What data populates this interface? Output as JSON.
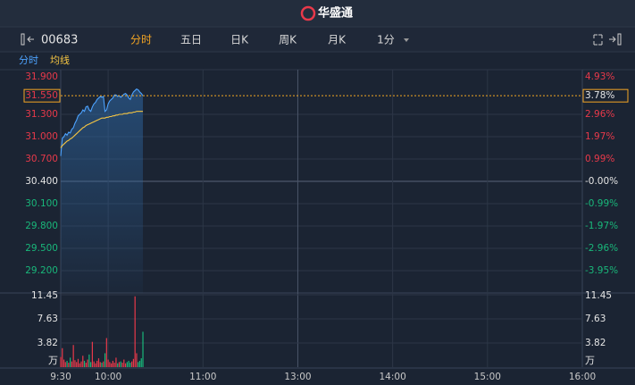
{
  "header": {
    "logo": "华盛通",
    "code": "00683",
    "tabs": [
      "分时",
      "五日",
      "日K",
      "周K",
      "月K",
      "1分"
    ],
    "active_tab": 0
  },
  "chart_data": {
    "type": "line",
    "x": [
      0,
      1,
      2,
      3,
      4,
      5,
      6,
      7,
      8,
      9,
      10,
      11,
      12,
      13,
      14,
      15,
      16,
      17,
      18,
      19,
      20,
      21,
      22,
      23,
      24,
      25,
      26,
      27,
      28,
      29,
      30,
      31,
      32,
      33,
      34,
      35,
      36,
      37,
      38,
      39,
      40,
      41,
      42,
      43,
      44,
      45,
      46,
      47,
      48,
      49,
      50,
      51,
      52
    ],
    "xlim": [
      0,
      330
    ],
    "xticks": [
      {
        "value": 0,
        "label": "9:30"
      },
      {
        "value": 30,
        "label": "10:00"
      },
      {
        "value": 90,
        "label": "11:00"
      },
      {
        "value": 150,
        "label": "13:00"
      },
      {
        "value": 210,
        "label": "14:00"
      },
      {
        "value": 270,
        "label": "15:00"
      },
      {
        "value": 330,
        "label": "16:00"
      }
    ],
    "series": [
      {
        "name": "分时",
        "color": "#4da3ff",
        "values": [
          30.74,
          30.98,
          31.0,
          31.04,
          31.02,
          31.06,
          31.05,
          31.1,
          31.12,
          31.18,
          31.22,
          31.28,
          31.3,
          31.32,
          31.36,
          31.34,
          31.4,
          31.41,
          31.36,
          31.34,
          31.4,
          31.44,
          31.46,
          31.5,
          31.52,
          31.54,
          31.53,
          31.54,
          31.34,
          31.36,
          31.44,
          31.48,
          31.5,
          31.52,
          31.56,
          31.56,
          31.54,
          31.55,
          31.53,
          31.55,
          31.57,
          31.58,
          31.56,
          31.52,
          31.5,
          31.56,
          31.6,
          31.62,
          31.64,
          31.63,
          31.6,
          31.58,
          31.55
        ]
      },
      {
        "name": "均线",
        "color": "#f5c542",
        "values": [
          30.85,
          30.88,
          30.9,
          30.92,
          30.94,
          30.95,
          30.97,
          30.98,
          31.0,
          31.02,
          31.04,
          31.06,
          31.08,
          31.1,
          31.12,
          31.13,
          31.15,
          31.16,
          31.17,
          31.18,
          31.19,
          31.2,
          31.21,
          31.22,
          31.23,
          31.24,
          31.25,
          31.25,
          31.25,
          31.26,
          31.26,
          31.27,
          31.27,
          31.28,
          31.28,
          31.29,
          31.29,
          31.3,
          31.3,
          31.3,
          31.31,
          31.31,
          31.31,
          31.32,
          31.32,
          31.32,
          31.33,
          31.33,
          31.34,
          31.34,
          31.34,
          31.34,
          31.34
        ]
      }
    ],
    "ylim": [
      28.9,
      31.9
    ],
    "yticks": [
      {
        "value": 31.9,
        "label": "31.900"
      },
      {
        "value": 31.3,
        "label": "31.300"
      },
      {
        "value": 31.0,
        "label": "31.000"
      },
      {
        "value": 30.7,
        "label": "30.700"
      },
      {
        "value": 30.4,
        "label": "30.400"
      },
      {
        "value": 30.1,
        "label": "30.100"
      },
      {
        "value": 29.8,
        "label": "29.800"
      },
      {
        "value": 29.5,
        "label": "29.500"
      },
      {
        "value": 29.2,
        "label": "29.200"
      }
    ],
    "y2lim": [
      -4.93,
      4.93
    ],
    "y2ticks": [
      {
        "value": 4.93,
        "label": "4.93%"
      },
      {
        "value": 2.96,
        "label": "2.96%"
      },
      {
        "value": 1.97,
        "label": "1.97%"
      },
      {
        "value": 0.99,
        "label": "0.99%"
      },
      {
        "value": 0,
        "label": "-0.00%"
      },
      {
        "value": -0.99,
        "label": "-0.99%"
      },
      {
        "value": -1.97,
        "label": "-1.97%"
      },
      {
        "value": -2.96,
        "label": "-2.96%"
      },
      {
        "value": -3.95,
        "label": "-3.95%"
      }
    ],
    "last_price": {
      "value": 31.55,
      "label": "31.550"
    },
    "last_change": {
      "value": 3.78,
      "label": "3.78%"
    },
    "grid": true,
    "up_color": "#e8394a",
    "down_color": "#19b77a",
    "volume": {
      "type": "bar",
      "unit": "万",
      "values": [
        1.6,
        3.0,
        1.2,
        0.8,
        1.0,
        0.7,
        1.5,
        0.9,
        3.5,
        1.1,
        0.8,
        1.3,
        0.6,
        0.9,
        1.8,
        1.0,
        0.7,
        1.2,
        2.0,
        0.8,
        4.0,
        0.9,
        0.6,
        1.0,
        1.4,
        0.8,
        0.7,
        0.9,
        2.2,
        4.6,
        1.2,
        0.8,
        0.6,
        1.0,
        0.7,
        1.5,
        0.6,
        0.8,
        0.9,
        0.7,
        1.2,
        0.6,
        0.8,
        1.0,
        0.7,
        0.9,
        1.3,
        11.2,
        2.2,
        0.8,
        1.0,
        1.4,
        5.6
      ],
      "ylim": [
        0,
        11.45
      ],
      "yticks": [
        11.45,
        7.63,
        3.82
      ]
    }
  }
}
